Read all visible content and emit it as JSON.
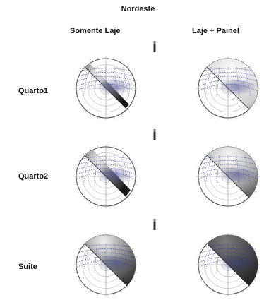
{
  "figure": {
    "title": "Nordeste",
    "columns": [
      "Somente Laje",
      "Laje + Painel"
    ],
    "rows": [
      "Quarto1",
      "Quarto2",
      "Suite"
    ]
  }
}
